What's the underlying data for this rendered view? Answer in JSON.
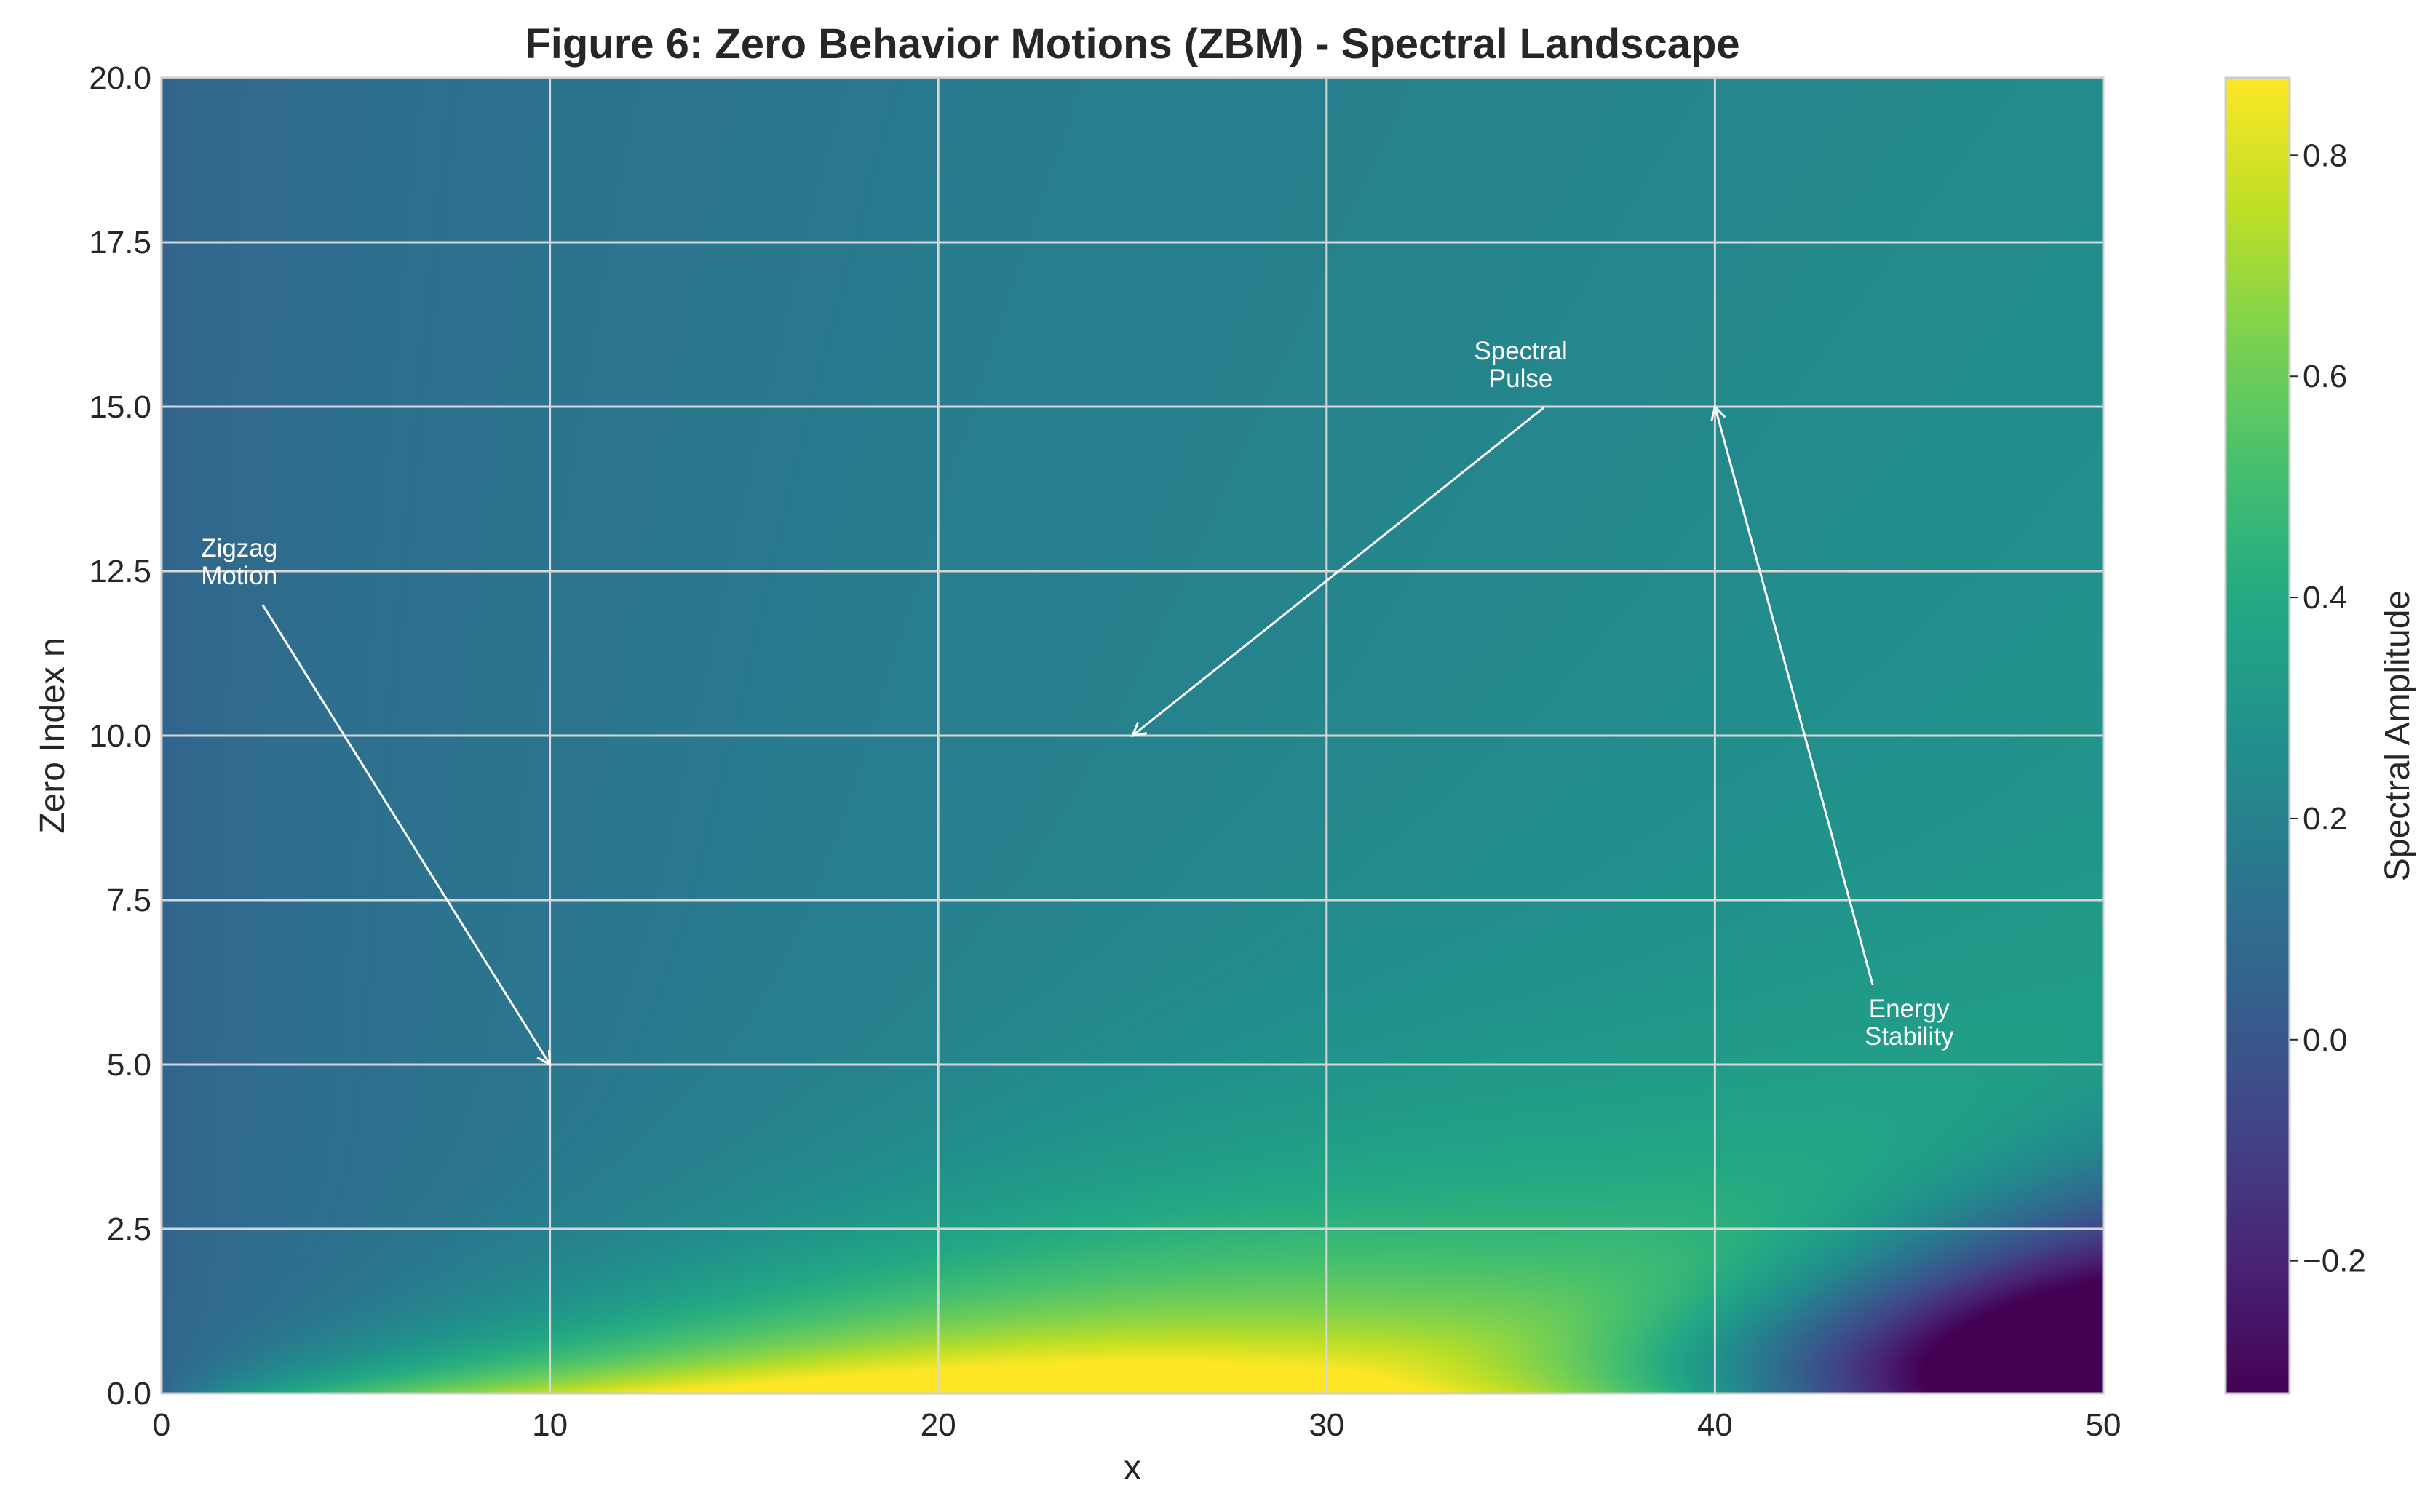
{
  "chart_data": {
    "type": "heatmap",
    "title": "Figure 6: Zero Behavior Motions (ZBM) - Spectral Landscape",
    "xlabel": "x",
    "ylabel": "Zero Index n",
    "xlim": [
      0,
      50
    ],
    "ylim": [
      0,
      20
    ],
    "x_ticks": [
      "0",
      "10",
      "20",
      "30",
      "40",
      "50"
    ],
    "x_tick_values": [
      0,
      10,
      20,
      30,
      40,
      50
    ],
    "y_ticks": [
      "0.0",
      "2.5",
      "5.0",
      "7.5",
      "10.0",
      "12.5",
      "15.0",
      "17.5",
      "20.0"
    ],
    "y_tick_values": [
      0,
      2.5,
      5,
      7.5,
      10,
      12.5,
      15,
      17.5,
      20
    ],
    "grid": true,
    "colormap": "viridis",
    "colorbar": {
      "label": "Spectral Amplitude",
      "range": [
        -0.32,
        0.87
      ],
      "ticks": [
        "−0.2",
        "0.0",
        "0.2",
        "0.4",
        "0.6",
        "0.8"
      ],
      "tick_values": [
        -0.2,
        0.0,
        0.2,
        0.4,
        0.6,
        0.8
      ]
    },
    "annotations": [
      {
        "lines": [
          "Zigzag",
          "Motion"
        ],
        "text_at": [
          2,
          12.3
        ],
        "arrow_to": [
          10,
          5
        ]
      },
      {
        "lines": [
          "Spectral",
          "Pulse"
        ],
        "text_at": [
          35,
          15.3
        ],
        "arrow_to": [
          25,
          10
        ]
      },
      {
        "lines": [
          "Energy",
          "Stability"
        ],
        "text_at": [
          45,
          5.3
        ],
        "arrow_to": [
          40,
          15
        ]
      }
    ]
  }
}
